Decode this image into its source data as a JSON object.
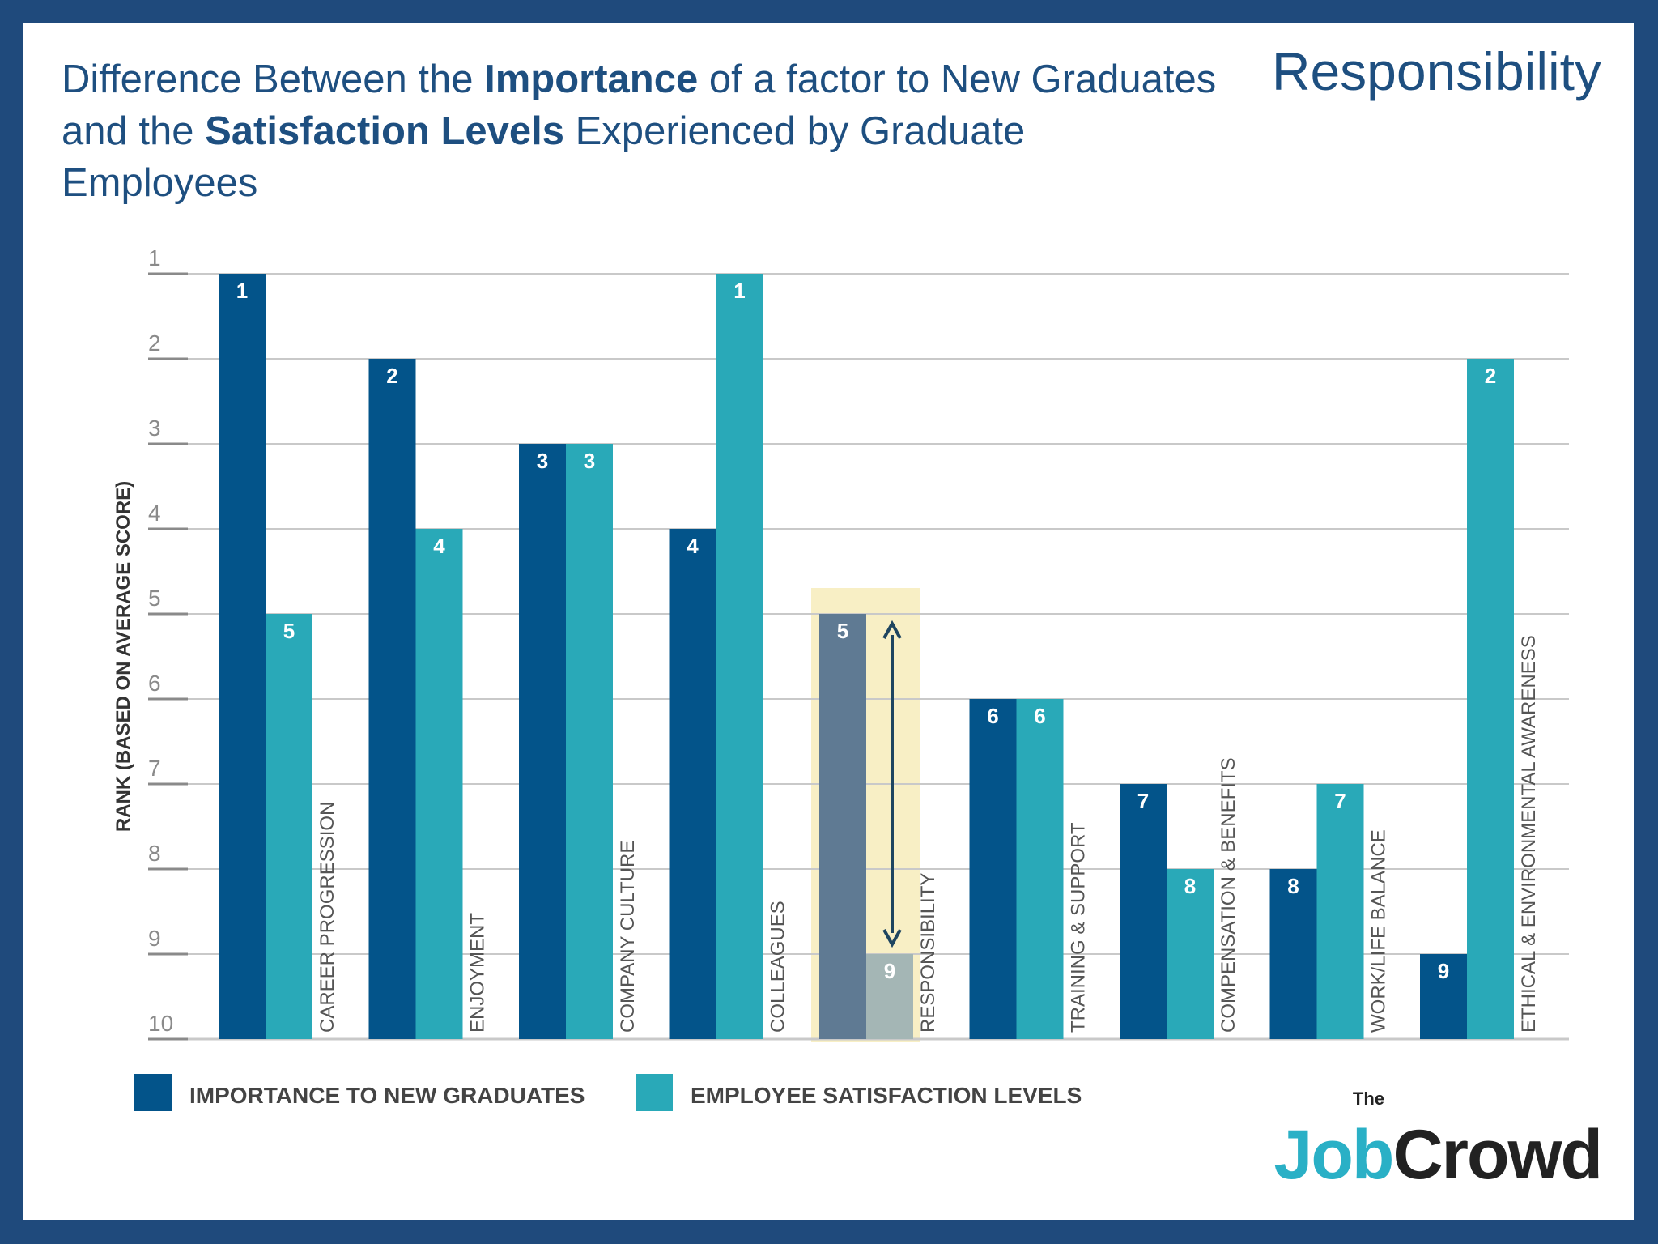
{
  "header": {
    "title_parts": [
      {
        "text": "Difference Between the ",
        "bold": false
      },
      {
        "text": "Importance",
        "bold": true
      },
      {
        "text": " of a factor to New Graduates and the ",
        "bold": false
      },
      {
        "text": "Satisfaction Levels",
        "bold": true
      },
      {
        "text": " Experienced by Graduate Employees",
        "bold": false
      }
    ],
    "topic": "Responsibility"
  },
  "logo": {
    "the": "The",
    "job": "Job",
    "crowd": "Crowd"
  },
  "colors": {
    "importance": "#03548a",
    "satisfaction": "#29a9b8",
    "highlight_bg": "#f8efc5",
    "highlight_importance": "#5f7a93",
    "highlight_satisfaction": "#a4b6b5",
    "grid": "#c9c9c9",
    "axis_text": "#8a8a8a",
    "bar_label": "#ffffff",
    "arrow": "#1e4560"
  },
  "chart_data": {
    "type": "bar",
    "ylabel": "RANK (BASED ON AVERAGE SCORE)",
    "yticks": [
      1,
      2,
      3,
      4,
      5,
      6,
      7,
      8,
      9,
      10
    ],
    "ylim": [
      10,
      1
    ],
    "y_inverted": true,
    "grid": true,
    "legend_position": "bottom-left",
    "categories": [
      "CAREER PROGRESSION",
      "ENJOYMENT",
      "COMPANY CULTURE",
      "COLLEAGUES",
      "RESPONSIBILITY",
      "TRAINING & SUPPORT",
      "COMPENSATION & BENEFITS",
      "WORK/LIFE BALANCE",
      "ETHICAL & ENVIRONMENTAL AWARENESS"
    ],
    "series": [
      {
        "name": "IMPORTANCE TO NEW GRADUATES",
        "values": [
          1,
          2,
          3,
          4,
          5,
          6,
          7,
          8,
          9
        ]
      },
      {
        "name": "EMPLOYEE SATISFACTION LEVELS",
        "values": [
          5,
          4,
          3,
          1,
          9,
          6,
          8,
          7,
          2
        ]
      }
    ],
    "highlighted_category": "RESPONSIBILITY",
    "annotation": "double-headed arrow spanning rank 5 to rank 9 on the highlighted category"
  }
}
